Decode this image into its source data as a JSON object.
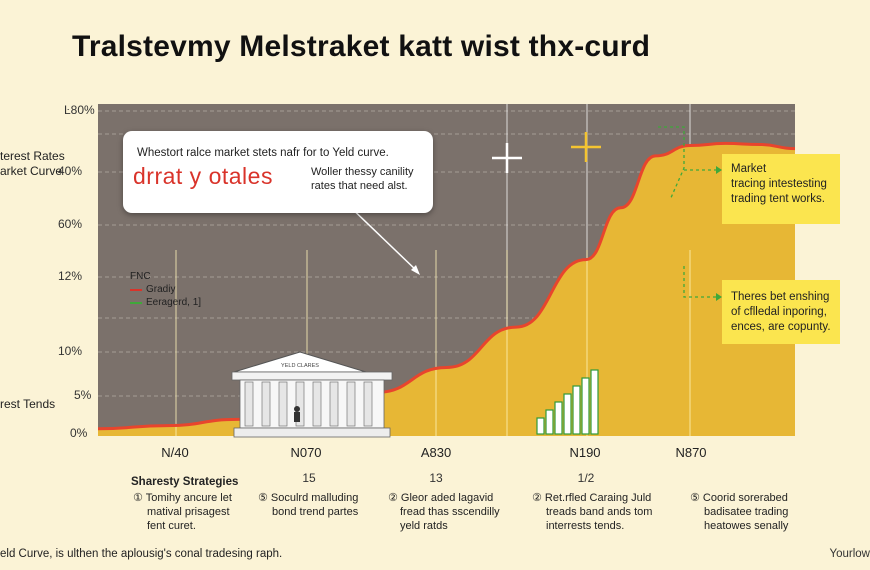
{
  "title": "Tralstevmy Melstraket katt wist thx-curd",
  "side_labels": [
    "terest Rates",
    "arket Curve",
    "rest Tends"
  ],
  "callout": {
    "text": "Whestort ralce market stets nafr for to Yeld curve.",
    "big": "drrat y otales",
    "sub": [
      "Woller thessy canility",
      "rates that need alst."
    ]
  },
  "notes": [
    [
      "Market",
      "tracing intestesting",
      "trading tent works."
    ],
    [
      "Theres bet enshing",
      "of cflledal inporing,",
      "ences, are copunty."
    ]
  ],
  "legend": {
    "title": "FNC",
    "items": [
      {
        "label": "Gradiy",
        "color": "#d9332a"
      },
      {
        "label": "Eeragerd, 1]",
        "color": "#3fa83a"
      }
    ]
  },
  "building_label": "YELD CLARES",
  "strategies": {
    "title": "Sharesty Strategies",
    "items": [
      [
        "① Tomihy ancure let",
        "matival prisagest",
        "fent curet."
      ],
      [
        "⑤ Soculrd malluding",
        "bond trend partes"
      ],
      [
        "② Gleor aded lagavid",
        "fread thas sscendilly",
        "yeld ratds"
      ],
      [
        "② Ret.rfled Caraing Juld",
        "treads band ands tom",
        "interrests tends."
      ],
      [
        "⑤ Coorid sorerabed",
        "badisatee trading",
        "heatowes senally"
      ]
    ]
  },
  "footer": "eld Curve, is ulthen the aplousig's conal tradesing raph.",
  "footer_right": "Yourlow",
  "chart_data": {
    "type": "area",
    "title": "Tralstevmy Melstraket katt wist thx-curd",
    "x_tick_labels": [
      "N/40",
      "N070",
      "A830",
      "N190",
      "N870"
    ],
    "x_tick_numbers": [
      "15",
      "13",
      "1/2"
    ],
    "y_tick_labels": [
      "0%",
      "5%",
      "10%",
      "12%",
      "60%",
      "40%",
      "Ŀ80%"
    ],
    "y_levels": [
      0,
      5,
      10,
      12,
      60,
      40,
      80
    ],
    "series": [
      {
        "color": "#e8452d",
        "fill": "#e7b735",
        "x": [
          0,
          0.1,
          0.2,
          0.3,
          0.4,
          0.5,
          0.6,
          0.7,
          0.75,
          0.8,
          0.85,
          0.9,
          0.95,
          1.0
        ],
        "values": [
          0.7,
          1.0,
          1.6,
          2.6,
          4.2,
          6.6,
          10.5,
          17,
          22,
          27,
          28,
          28.2,
          28.1,
          27.7
        ]
      }
    ],
    "mini_bars": [
      1,
      2,
      3,
      4,
      5,
      6,
      7
    ],
    "colors": {
      "background": "#7b716b",
      "fill": "#e7b735",
      "curve": "#e8452d",
      "note": "#fbe54f"
    }
  }
}
